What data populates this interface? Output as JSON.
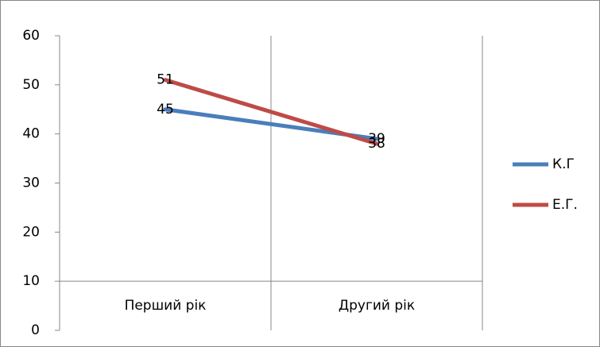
{
  "chart_data": {
    "type": "line",
    "categories": [
      "Перший рік",
      "Другий рік"
    ],
    "series": [
      {
        "name": "К.Г",
        "color": "#4a7ebb",
        "values": [
          45,
          39
        ]
      },
      {
        "name": "Е.Г.",
        "color": "#be4b48",
        "values": [
          51,
          38
        ]
      }
    ],
    "ylim": [
      0,
      60
    ],
    "yticks": [
      0,
      10,
      20,
      30,
      40,
      50,
      60
    ],
    "x_axis_at": 10,
    "legend": "right",
    "data_labels": true
  }
}
